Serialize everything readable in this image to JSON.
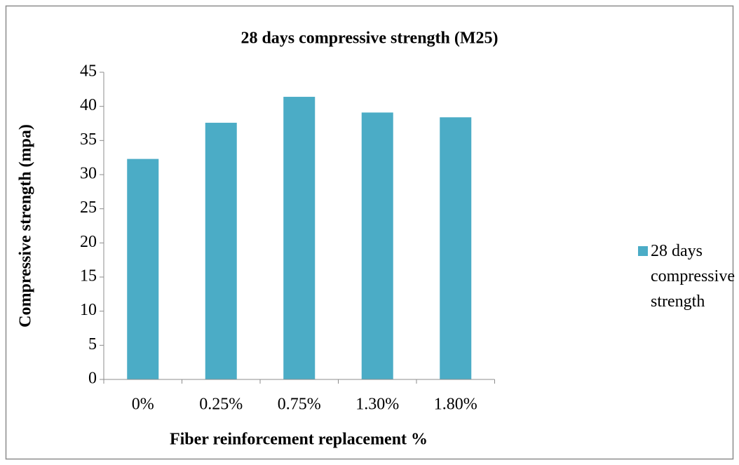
{
  "chart_data": {
    "type": "bar",
    "title": "28 days compressive strength (M25)",
    "x_label": "Fiber reinforcement replacement %",
    "y_label": "Compressive strength (mpa)",
    "categories": [
      "0%",
      "0.25%",
      "0.75%",
      "1.30%",
      "1.80%"
    ],
    "series": [
      {
        "name": "28 days compressive strength",
        "color": "#4bacc6",
        "values": [
          32.3,
          37.6,
          41.4,
          39.1,
          38.4
        ]
      }
    ],
    "ylim": [
      0,
      45
    ],
    "yticks": [
      0,
      5,
      10,
      15,
      20,
      25,
      30,
      35,
      40,
      45
    ],
    "grid": false,
    "legend": "right"
  }
}
